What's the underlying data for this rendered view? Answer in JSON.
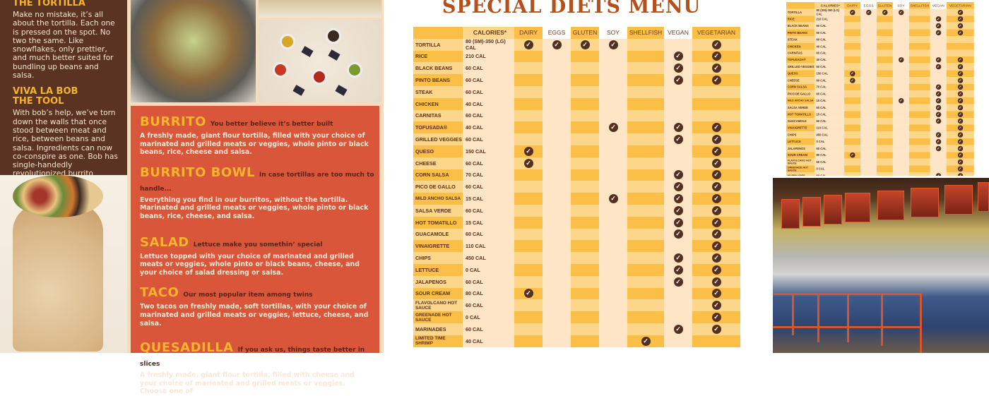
{
  "left_panel": {
    "sections": [
      {
        "heading": "THE TORTILLA",
        "body": "Make no mistake, it’s all about the tortilla. Each one is pressed on the spot. No two the same. Like snowflakes, only prettier, and much better suited for bundling up beans and salsa."
      },
      {
        "heading": "VIVA LA BOB THE TOOL",
        "body": "With bob’s help, we’ve torn down the walls that once stood between meat and rice, between beans and salsa. Ingredients can now co-conspire as one. Bob has single-handedly revolutionized burrito building forever."
      }
    ],
    "menu_items": [
      {
        "name": "BURRITO",
        "tagline": "You better believe it’s better built",
        "desc": "A freshly made, giant flour tortilla, filled with your choice of marinated and grilled meats or veggies, whole pinto or black beans, rice, cheese and salsa."
      },
      {
        "name": "BURRITO BOWL",
        "tagline": "In case tortillas are too much to handle...",
        "desc": "Everything you find in our burritos, without the tortilla. Marinated and grilled meats or veggies, whole pinto or black beans, rice, cheese, and salsa."
      },
      {
        "name": "SALAD",
        "tagline": "Lettuce make you somethin’ special",
        "desc": "Lettuce topped with your choice of marinated and grilled meats or veggies, whole pinto or black beans, cheese, and your choice of salad dressing or salsa."
      },
      {
        "name": "TACO",
        "tagline": "Our most popular item among twins",
        "desc": "Two tacos on freshly made, soft tortillas, with your choice of marinated and grilled meats or veggies, lettuce, cheese, and salsa."
      },
      {
        "name": "QUESADILLA",
        "tagline": "If you ask us, things taste better in slices",
        "desc": "A freshly made, giant flour tortilla, filled with cheese and your choice of marinated and grilled meats or veggies. Choose one of"
      }
    ]
  },
  "diet_menu": {
    "title": "SPECIAL DIETS MENU",
    "columns": [
      "",
      "CALORIES*",
      "DAIRY",
      "EGGS",
      "GLUTEN",
      "SOY",
      "SHELLFISH",
      "VEGAN",
      "VEGETARIAN"
    ],
    "check_icon": "check-circle-icon",
    "rows": [
      {
        "name": "TORTILLA",
        "cal": "80 (SM)-350 (LG) CAL",
        "flags": [
          1,
          1,
          1,
          1,
          0,
          0,
          1
        ]
      },
      {
        "name": "RICE",
        "cal": "210 CAL",
        "flags": [
          0,
          0,
          0,
          0,
          0,
          1,
          1
        ]
      },
      {
        "name": "BLACK BEANS",
        "cal": "60 CAL",
        "flags": [
          0,
          0,
          0,
          0,
          0,
          1,
          1
        ]
      },
      {
        "name": "PINTO BEANS",
        "cal": "60 CAL",
        "flags": [
          0,
          0,
          0,
          0,
          0,
          1,
          1
        ]
      },
      {
        "name": "STEAK",
        "cal": "60 CAL",
        "flags": [
          0,
          0,
          0,
          0,
          0,
          0,
          0
        ]
      },
      {
        "name": "CHICKEN",
        "cal": "40 CAL",
        "flags": [
          0,
          0,
          0,
          0,
          0,
          0,
          0
        ]
      },
      {
        "name": "CARNITAS",
        "cal": "60 CAL",
        "flags": [
          0,
          0,
          0,
          0,
          0,
          0,
          0
        ]
      },
      {
        "name": "TOFUSADA®",
        "cal": "40 CAL",
        "flags": [
          0,
          0,
          0,
          1,
          0,
          1,
          1
        ]
      },
      {
        "name": "GRILLED VEGGIES",
        "cal": "60 CAL",
        "flags": [
          0,
          0,
          0,
          0,
          0,
          1,
          1
        ]
      },
      {
        "name": "QUESO",
        "cal": "150 CAL",
        "flags": [
          1,
          0,
          0,
          0,
          0,
          0,
          1
        ]
      },
      {
        "name": "CHEESE",
        "cal": "60 CAL",
        "flags": [
          1,
          0,
          0,
          0,
          0,
          0,
          1
        ]
      },
      {
        "name": "CORN SALSA",
        "cal": "70 CAL",
        "flags": [
          0,
          0,
          0,
          0,
          0,
          1,
          1
        ]
      },
      {
        "name": "PICO DE GALLO",
        "cal": "60 CAL",
        "flags": [
          0,
          0,
          0,
          0,
          0,
          1,
          1
        ]
      },
      {
        "name": "MILD ANCHO SALSA",
        "cal": "15 CAL",
        "flags": [
          0,
          0,
          0,
          1,
          0,
          1,
          1
        ]
      },
      {
        "name": "SALSA VERDE",
        "cal": "60 CAL",
        "flags": [
          0,
          0,
          0,
          0,
          0,
          1,
          1
        ]
      },
      {
        "name": "HOT TOMATILLO",
        "cal": "15 CAL",
        "flags": [
          0,
          0,
          0,
          0,
          0,
          1,
          1
        ]
      },
      {
        "name": "GUACAMOLE",
        "cal": "60 CAL",
        "flags": [
          0,
          0,
          0,
          0,
          0,
          1,
          1
        ]
      },
      {
        "name": "VINAIGRETTE",
        "cal": "110 CAL",
        "flags": [
          0,
          0,
          0,
          0,
          0,
          0,
          1
        ]
      },
      {
        "name": "CHIPS",
        "cal": "450 CAL",
        "flags": [
          0,
          0,
          0,
          0,
          0,
          1,
          1
        ]
      },
      {
        "name": "LETTUCE",
        "cal": "0 CAL",
        "flags": [
          0,
          0,
          0,
          0,
          0,
          1,
          1
        ]
      },
      {
        "name": "JALAPENOS",
        "cal": "60 CAL",
        "flags": [
          0,
          0,
          0,
          0,
          0,
          1,
          1
        ]
      },
      {
        "name": "SOUR CREAM",
        "cal": "80 CAL",
        "flags": [
          1,
          0,
          0,
          0,
          0,
          0,
          1
        ]
      },
      {
        "name": "FLAVOLCANO HOT SAUCE",
        "cal": "60 CAL",
        "flags": [
          0,
          0,
          0,
          0,
          0,
          0,
          1
        ]
      },
      {
        "name": "GREENADE HOT SAUCE",
        "cal": "0 CAL",
        "flags": [
          0,
          0,
          0,
          0,
          0,
          0,
          1
        ]
      },
      {
        "name": "MARINADES",
        "cal": "60 CAL",
        "flags": [
          0,
          0,
          0,
          0,
          0,
          1,
          1
        ]
      },
      {
        "name": "LIMITED TIME SHRIMP",
        "cal": "40 CAL",
        "flags": [
          0,
          0,
          0,
          0,
          1,
          0,
          0
        ]
      }
    ]
  },
  "colors": {
    "brown_panel": "#5b3323",
    "red_panel": "#d9563a",
    "title": "#b4501b",
    "header_gold": "#fbbf47",
    "check": "#55301f"
  }
}
